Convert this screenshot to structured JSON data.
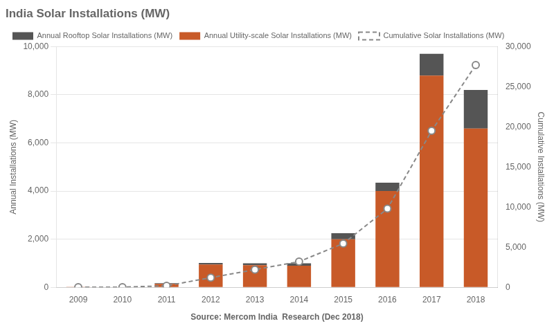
{
  "chart_data": {
    "type": "bar",
    "title": "India Solar Installations (MW)",
    "annotation": "Source: Mercom India  Research (Dec 2018)",
    "categories": [
      "2009",
      "2010",
      "2011",
      "2012",
      "2013",
      "2014",
      "2015",
      "2016",
      "2017",
      "2018"
    ],
    "stacked": true,
    "grid": true,
    "legend": "upper-left",
    "ylabel": "Annual Installations (MW)",
    "y2label": "Cumulative Installations (MW)",
    "ylim": [
      0,
      10000
    ],
    "yticks": [
      0,
      {
        "value": 2000,
        "label": "2,000"
      },
      {
        "value": 4000,
        "label": "4,000"
      },
      {
        "value": 6000,
        "label": "6,000"
      },
      {
        "value": 8000,
        "label": "8,000"
      },
      {
        "value": 10000,
        "label": "10,000"
      }
    ],
    "y2lim": [
      0,
      30000
    ],
    "y2ticks": [
      0,
      {
        "value": 5000,
        "label": "5,000"
      },
      {
        "value": 10000,
        "label": "10,000"
      },
      {
        "value": 15000,
        "label": "15,000"
      },
      {
        "value": 20000,
        "label": "20,000"
      },
      {
        "value": 25000,
        "label": "25,000"
      },
      {
        "value": 30000,
        "label": "30,000"
      }
    ],
    "series": [
      {
        "name": "Annual Utility-scale Solar Installations (MW)",
        "type": "bar",
        "color": "#c85a28",
        "values": [
          6,
          10,
          140,
          950,
          920,
          900,
          2000,
          4000,
          8800,
          6600
        ]
      },
      {
        "name": "Annual Rooftop Solar Installations (MW)",
        "type": "bar",
        "color": "#555555",
        "values": [
          2,
          5,
          30,
          60,
          80,
          100,
          250,
          350,
          900,
          1600
        ]
      },
      {
        "name": "Cumulative Solar Installations (MW)",
        "type": "line",
        "axis": "y2",
        "color": "#888888",
        "marker": "circle",
        "line_style": "dashed",
        "values": [
          8,
          23,
          193,
          1203,
          2203,
          3203,
          5453,
          9803,
          19503,
          27703
        ]
      }
    ]
  }
}
